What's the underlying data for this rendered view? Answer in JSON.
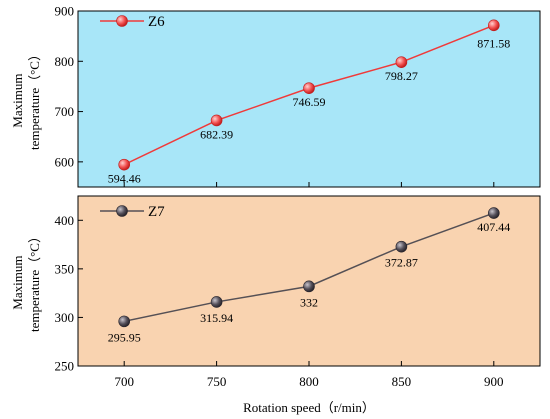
{
  "colors": {
    "top_background": "#a8e6f8",
    "bottom_background": "#f9d3b0",
    "top_line": "#f03a3a",
    "bottom_line": "#555055",
    "top_marker": "#f25050",
    "bottom_marker": "#55505a"
  },
  "chart_data": [
    {
      "type": "line",
      "x": [
        700,
        750,
        800,
        850,
        900
      ],
      "series": [
        {
          "name": "Z6",
          "values": [
            594.46,
            682.39,
            746.59,
            798.27,
            871.58
          ]
        }
      ],
      "data_labels": [
        "594.46",
        "682.39",
        "746.59",
        "798.27",
        "871.58"
      ],
      "ylabel": [
        "Maximum",
        "temperature（°C）"
      ],
      "ylim": [
        550,
        900
      ],
      "yticks": [
        600,
        700,
        800,
        900
      ],
      "legend_placement": "top-left",
      "grid": false
    },
    {
      "type": "line",
      "x": [
        700,
        750,
        800,
        850,
        900
      ],
      "series": [
        {
          "name": "Z7",
          "values": [
            295.95,
            315.94,
            332,
            372.87,
            407.44
          ]
        }
      ],
      "data_labels": [
        "295.95",
        "315.94",
        "332",
        "372.87",
        "407.44"
      ],
      "ylabel": [
        "Maximum",
        "temperature（°C）"
      ],
      "ylim": [
        250,
        425
      ],
      "yticks": [
        250,
        300,
        350,
        400
      ],
      "xlabel": "Rotation speed（r/min）",
      "xticks": [
        700,
        750,
        800,
        850,
        900
      ],
      "legend_placement": "top-left",
      "grid": false
    }
  ]
}
